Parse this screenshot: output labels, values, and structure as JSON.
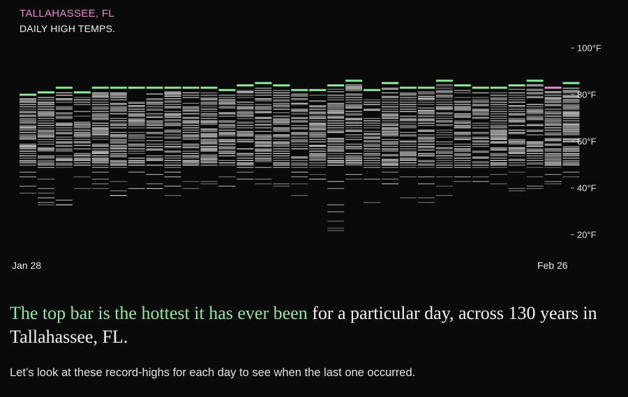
{
  "header": {
    "city": "TALLAHASSEE, FL",
    "subtitle": "DAILY HIGH TEMPS."
  },
  "colors": {
    "record": "#8ee89c",
    "record_today": "#e88ccd",
    "bar": "#e6e6e6",
    "background": "#0a0a0a"
  },
  "story": {
    "headline_highlight": "The top bar is the hottest it has ever been",
    "headline_rest": " for a particular day, across 130 years in Tallahassee, FL.",
    "caption": "Let’s look at these record-highs for each day to see when the last one occurred."
  },
  "chart_data": {
    "type": "strip",
    "x_start_label": "Jan 28",
    "x_end_label": "Feb 26",
    "yticks": [
      {
        "value": 100,
        "label": "100°F"
      },
      {
        "value": 80,
        "label": "80°F"
      },
      {
        "value": 60,
        "label": "60°F"
      },
      {
        "value": 40,
        "label": "40°F"
      },
      {
        "value": 20,
        "label": "20°F"
      }
    ],
    "ylim": [
      17,
      102
    ],
    "days": [
      {
        "record": 80,
        "low": 38
      },
      {
        "record": 81,
        "low": 33
      },
      {
        "record": 83,
        "low": 33
      },
      {
        "record": 81,
        "low": 40
      },
      {
        "record": 83,
        "low": 40
      },
      {
        "record": 83,
        "low": 37
      },
      {
        "record": 83,
        "low": 40
      },
      {
        "record": 83,
        "low": 40
      },
      {
        "record": 83,
        "low": 37
      },
      {
        "record": 83,
        "low": 40
      },
      {
        "record": 83,
        "low": 42
      },
      {
        "record": 82,
        "low": 41
      },
      {
        "record": 84,
        "low": 44
      },
      {
        "record": 85,
        "low": 42
      },
      {
        "record": 84,
        "low": 41
      },
      {
        "record": 82,
        "low": 37
      },
      {
        "record": 82,
        "low": 44
      },
      {
        "record": 84,
        "low": 22
      },
      {
        "record": 86,
        "low": 44
      },
      {
        "record": 82,
        "low": 34
      },
      {
        "record": 85,
        "low": 42
      },
      {
        "record": 83,
        "low": 36
      },
      {
        "record": 83,
        "low": 34
      },
      {
        "record": 86,
        "low": 37
      },
      {
        "record": 84,
        "low": 43
      },
      {
        "record": 83,
        "low": 43
      },
      {
        "record": 83,
        "low": 42
      },
      {
        "record": 84,
        "low": 39
      },
      {
        "record": 86,
        "low": 40
      },
      {
        "record": 83,
        "low": 42,
        "record_today": true
      },
      {
        "record": 85,
        "low": 45
      }
    ]
  }
}
